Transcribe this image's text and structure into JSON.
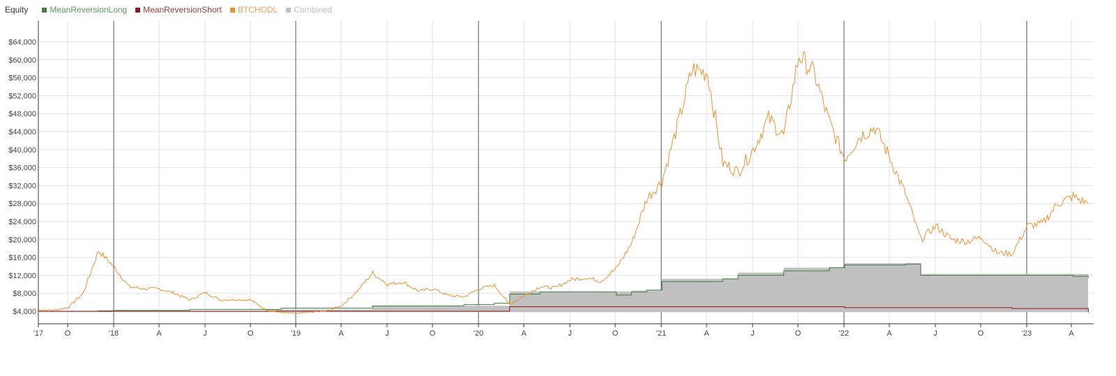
{
  "legend": {
    "title": "Equity",
    "items": [
      {
        "label": "MeanReversionLong",
        "color": "#3f7f3f",
        "text_color": "#5a9a5a"
      },
      {
        "label": "MeanReversionShort",
        "color": "#8b1a1a",
        "text_color": "#9a3a3a"
      },
      {
        "label": "BTCHODL",
        "color": "#f0902e",
        "text_color": "#f0a060"
      },
      {
        "label": "Combined",
        "color": "#c0c0c0",
        "text_color": "#c0c0c0"
      }
    ]
  },
  "chart_data": {
    "type": "line",
    "title": "Equity",
    "xlabel": "",
    "ylabel": "",
    "ylim": [
      0,
      68000
    ],
    "y_ticks": [
      "$4,000",
      "$8,000",
      "$12,000",
      "$16,000",
      "$20,000",
      "$24,000",
      "$28,000",
      "$32,000",
      "$36,000",
      "$40,000",
      "$44,000",
      "$48,000",
      "$52,000",
      "$56,000",
      "$60,000",
      "$64,000"
    ],
    "x_ticks": [
      "'17",
      "O",
      "'18",
      "A",
      "J",
      "O",
      "'19",
      "A",
      "J",
      "O",
      "'20",
      "A",
      "J",
      "O",
      "'21",
      "A",
      "J",
      "O",
      "'22",
      "A",
      "J",
      "O",
      "'23",
      "A"
    ],
    "grid": true,
    "legend_position": "top-left",
    "series": [
      {
        "name": "BTCHODL",
        "color": "#f0902e",
        "points": [
          [
            "2017-08",
            4300
          ],
          [
            "2017-09",
            4200
          ],
          [
            "2017-10",
            4800
          ],
          [
            "2017-11",
            8000
          ],
          [
            "2017-12",
            17500
          ],
          [
            "2018-01",
            14000
          ],
          [
            "2018-02",
            9500
          ],
          [
            "2018-03",
            9000
          ],
          [
            "2018-04",
            9000
          ],
          [
            "2018-05",
            8000
          ],
          [
            "2018-06",
            6500
          ],
          [
            "2018-07",
            8200
          ],
          [
            "2018-08",
            6500
          ],
          [
            "2018-09",
            6600
          ],
          [
            "2018-10",
            6500
          ],
          [
            "2018-11",
            4300
          ],
          [
            "2018-12",
            3700
          ],
          [
            "2019-01",
            3500
          ],
          [
            "2019-02",
            3800
          ],
          [
            "2019-03",
            4000
          ],
          [
            "2019-04",
            5300
          ],
          [
            "2019-05",
            8500
          ],
          [
            "2019-06",
            12500
          ],
          [
            "2019-07",
            10000
          ],
          [
            "2019-08",
            10500
          ],
          [
            "2019-09",
            8500
          ],
          [
            "2019-10",
            9000
          ],
          [
            "2019-11",
            7500
          ],
          [
            "2019-12",
            7200
          ],
          [
            "2020-01",
            9000
          ],
          [
            "2020-02",
            9800
          ],
          [
            "2020-03",
            5500
          ],
          [
            "2020-04",
            7500
          ],
          [
            "2020-05",
            9500
          ],
          [
            "2020-06",
            9200
          ],
          [
            "2020-07",
            11000
          ],
          [
            "2020-08",
            11500
          ],
          [
            "2020-09",
            10700
          ],
          [
            "2020-10",
            13500
          ],
          [
            "2020-11",
            19000
          ],
          [
            "2020-12",
            29000
          ],
          [
            "2021-01",
            33000
          ],
          [
            "2021-02",
            45000
          ],
          [
            "2021-03",
            58000
          ],
          [
            "2021-04",
            57000
          ],
          [
            "2021-05",
            37000
          ],
          [
            "2021-06",
            35000
          ],
          [
            "2021-07",
            40000
          ],
          [
            "2021-08",
            47000
          ],
          [
            "2021-09",
            43000
          ],
          [
            "2021-10",
            61000
          ],
          [
            "2021-11",
            57000
          ],
          [
            "2021-12",
            46000
          ],
          [
            "2022-01",
            38000
          ],
          [
            "2022-02",
            43000
          ],
          [
            "2022-03",
            45000
          ],
          [
            "2022-04",
            38000
          ],
          [
            "2022-05",
            30000
          ],
          [
            "2022-06",
            20000
          ],
          [
            "2022-07",
            23000
          ],
          [
            "2022-08",
            20000
          ],
          [
            "2022-09",
            19500
          ],
          [
            "2022-10",
            20500
          ],
          [
            "2022-11",
            17000
          ],
          [
            "2022-12",
            16800
          ],
          [
            "2023-01",
            23000
          ],
          [
            "2023-02",
            23500
          ],
          [
            "2023-03",
            28000
          ],
          [
            "2023-04",
            29500
          ],
          [
            "2023-05",
            28000
          ]
        ]
      },
      {
        "name": "MeanReversionLong",
        "color": "#3f7f3f",
        "points": [
          [
            "2017-08",
            4000
          ],
          [
            "2017-12",
            4100
          ],
          [
            "2018-01",
            4200
          ],
          [
            "2018-06",
            4400
          ],
          [
            "2018-11",
            4400
          ],
          [
            "2018-12",
            4700
          ],
          [
            "2019-06",
            5200
          ],
          [
            "2019-12",
            5500
          ],
          [
            "2020-02",
            5800
          ],
          [
            "2020-03",
            7800
          ],
          [
            "2020-05",
            8300
          ],
          [
            "2020-10",
            7600
          ],
          [
            "2020-11",
            8300
          ],
          [
            "2020-12",
            8700
          ],
          [
            "2021-01",
            10600
          ],
          [
            "2021-05",
            11200
          ],
          [
            "2021-06",
            12000
          ],
          [
            "2021-09",
            13000
          ],
          [
            "2021-12",
            13700
          ],
          [
            "2022-01",
            14300
          ],
          [
            "2022-05",
            14500
          ],
          [
            "2022-06",
            12000
          ],
          [
            "2022-12",
            12000
          ],
          [
            "2023-04",
            11800
          ],
          [
            "2023-05",
            11500
          ]
        ]
      },
      {
        "name": "MeanReversionShort",
        "color": "#8b1a1a",
        "points": [
          [
            "2017-08",
            4000
          ],
          [
            "2020-02",
            4000
          ],
          [
            "2020-03",
            5000
          ],
          [
            "2022-01",
            4800
          ],
          [
            "2022-12",
            4600
          ],
          [
            "2023-04",
            4600
          ],
          [
            "2023-05",
            3800
          ]
        ]
      },
      {
        "name": "Combined",
        "color": "#c0c0c0",
        "points": [
          [
            "2017-08",
            4000
          ],
          [
            "2018-11",
            4400
          ],
          [
            "2019-06",
            5200
          ],
          [
            "2020-03",
            8400
          ],
          [
            "2020-11",
            8600
          ],
          [
            "2021-01",
            11200
          ],
          [
            "2021-06",
            12600
          ],
          [
            "2021-09",
            13700
          ],
          [
            "2022-01",
            14700
          ],
          [
            "2022-06",
            12300
          ],
          [
            "2023-05",
            11200
          ]
        ]
      }
    ]
  }
}
